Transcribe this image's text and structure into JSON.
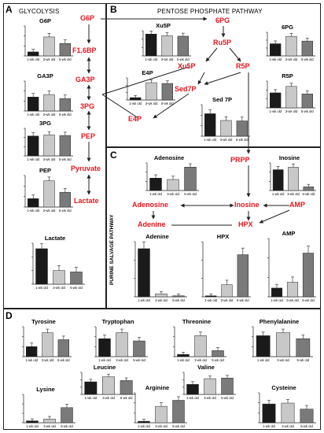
{
  "panels": {
    "a": {
      "label": "A",
      "title": "GLYCOLYSIS"
    },
    "b": {
      "label": "B",
      "title": "PENTOSE PHOSPHATE PATHWAY"
    },
    "c": {
      "label": "C",
      "title": "PURINE SALVAGE PATHWAY"
    },
    "d": {
      "label": "D",
      "title": ""
    }
  },
  "metabolites": {
    "g6p": "G6P",
    "f16bp": "F1,6BP",
    "ga3p": "GA3P",
    "3pg": "3PG",
    "pep": "PEP",
    "pyruvate": "Pyruvate",
    "lactate": "Lactate",
    "6pg": "6PG",
    "ru5p": "Ru5P",
    "xu5p": "Xu5P",
    "r5p": "R5P",
    "sed7p": "Sed7P",
    "e4p": "E4P",
    "prpp": "PRPP",
    "adenosine": "Adenosine",
    "inosine": "Inosine",
    "adenine": "Adenine",
    "hpx": "HPX",
    "amp": "AMP"
  },
  "colors": {
    "metabolite": "#e5161d",
    "bar_1wk": "#1a1a1a",
    "bar_3wk": "#c8c8c8",
    "bar_5wk": "#7a7a7a"
  },
  "chart_data": [
    {
      "id": "g6p",
      "type": "bar",
      "title": "G6P",
      "categories": [
        "1-wk old",
        "3-wk old",
        "5-wk old"
      ],
      "values": [
        8,
        38,
        25
      ],
      "ylim": [
        0,
        60
      ]
    },
    {
      "id": "ga3p",
      "type": "bar",
      "title": "GA3P",
      "categories": [
        "1-wk old",
        "3-wk old",
        "5-wk old"
      ],
      "values": [
        28,
        33,
        25
      ],
      "ylim": [
        0,
        60
      ]
    },
    {
      "id": "pg3",
      "type": "bar",
      "title": "3PG",
      "categories": [
        "1-wk old",
        "3-wk old",
        "5-wk old"
      ],
      "values": [
        3600,
        3800,
        3700
      ],
      "ylim": [
        0,
        5000
      ]
    },
    {
      "id": "pep",
      "type": "bar",
      "title": "PEP",
      "categories": [
        "1-wk old",
        "3-wk old",
        "5-wk old"
      ],
      "values": [
        80,
        250,
        140
      ],
      "ylim": [
        0,
        300
      ]
    },
    {
      "id": "lactate",
      "type": "bar",
      "title": "Lactate",
      "categories": [
        "1-wk old",
        "3-wk old",
        "5-wk old"
      ],
      "values": [
        52,
        20,
        18
      ],
      "ylim": [
        0,
        60
      ]
    },
    {
      "id": "xu5p",
      "type": "bar",
      "title": "Xu5P",
      "categories": [
        "1-wk old",
        "3-wk old",
        "5-wk old"
      ],
      "values": [
        52,
        48,
        47
      ],
      "ylim": [
        0,
        60
      ]
    },
    {
      "id": "pg6",
      "type": "bar",
      "title": "6PG",
      "categories": [
        "1-wk old",
        "3-wk old",
        "5-wk old"
      ],
      "values": [
        36,
        58,
        44
      ],
      "ylim": [
        0,
        70
      ]
    },
    {
      "id": "e4p",
      "type": "bar",
      "title": "E4P",
      "categories": [
        "1-wk old",
        "3-wk old",
        "5-wk old"
      ],
      "values": [
        3,
        22,
        21
      ],
      "ylim": [
        0,
        28
      ]
    },
    {
      "id": "r5p",
      "type": "bar",
      "title": "R5P",
      "categories": [
        "1-wk old",
        "3-wk old",
        "5-wk old"
      ],
      "values": [
        28,
        40,
        26
      ],
      "ylim": [
        0,
        50
      ]
    },
    {
      "id": "sed7p",
      "type": "bar",
      "title": "Sed 7P",
      "categories": [
        "1-wk old",
        "3-wk old",
        "5-wk old"
      ],
      "values": [
        10,
        7,
        6.8
      ],
      "ylim": [
        0,
        14
      ]
    },
    {
      "id": "adenosine",
      "type": "bar",
      "title": "Adenosine",
      "categories": [
        "1-wk old",
        "3-wk old",
        "5-wk old"
      ],
      "values": [
        18,
        16,
        34
      ],
      "ylim": [
        0,
        40
      ]
    },
    {
      "id": "inosine",
      "type": "bar",
      "title": "Inosine",
      "categories": [
        "1-wk old",
        "3-wk old",
        "5-wk old"
      ],
      "values": [
        34,
        38,
        6
      ],
      "ylim": [
        0,
        45
      ]
    },
    {
      "id": "adenine",
      "type": "bar",
      "title": "Adenine",
      "categories": [
        "1-wk old",
        "3-wk old",
        "5-wk old"
      ],
      "values": [
        48,
        3,
        1
      ],
      "ylim": [
        0,
        55
      ]
    },
    {
      "id": "hpx",
      "type": "bar",
      "title": "HPX",
      "categories": [
        "1-wk old",
        "3-wk old",
        "5-wk old"
      ],
      "values": [
        1,
        12,
        42
      ],
      "ylim": [
        0,
        55
      ]
    },
    {
      "id": "amp",
      "type": "bar",
      "title": "AMP",
      "categories": [
        "1-wk old",
        "3-wk old",
        "5-wk old"
      ],
      "values": [
        6,
        10,
        30
      ],
      "ylim": [
        0,
        40
      ]
    },
    {
      "id": "tyrosine",
      "type": "bar",
      "title": "Tyrosine",
      "categories": [
        "1-wk old",
        "3-wk old",
        "5-wk old"
      ],
      "values": [
        10,
        24,
        17
      ],
      "ylim": [
        0,
        30
      ]
    },
    {
      "id": "tryptophan",
      "type": "bar",
      "title": "Tryptophan",
      "categories": [
        "1-wk old",
        "3-wk old",
        "5-wk old"
      ],
      "values": [
        24,
        32,
        21
      ],
      "ylim": [
        0,
        40
      ]
    },
    {
      "id": "threonine",
      "type": "bar",
      "title": "Threonine",
      "categories": [
        "1-wk old",
        "3-wk old",
        "5-wk old"
      ],
      "values": [
        3,
        28,
        8
      ],
      "ylim": [
        0,
        40
      ]
    },
    {
      "id": "phenylalanine",
      "type": "bar",
      "title": "Phenylalanine",
      "categories": [
        "1-wk old",
        "3-wk old",
        "5-wk old"
      ],
      "values": [
        14,
        16,
        12
      ],
      "ylim": [
        0,
        20
      ]
    },
    {
      "id": "leucine",
      "type": "bar",
      "title": "Leucine",
      "categories": [
        "1-wk old",
        "3-wk old",
        "5-wk old"
      ],
      "values": [
        20,
        28,
        22
      ],
      "ylim": [
        0,
        35
      ]
    },
    {
      "id": "valine",
      "type": "bar",
      "title": "Valine",
      "categories": [
        "1-wk old",
        "3-wk old",
        "5-wk old"
      ],
      "values": [
        16,
        25,
        26
      ],
      "ylim": [
        0,
        35
      ]
    },
    {
      "id": "lysine",
      "type": "bar",
      "title": "Lysine",
      "categories": [
        "1-wk old",
        "3-wk old",
        "5-wk old"
      ],
      "values": [
        2,
        4,
        16
      ],
      "ylim": [
        0,
        30
      ]
    },
    {
      "id": "arginine",
      "type": "bar",
      "title": "Arginine",
      "categories": [
        "1-wk old",
        "3-wk old",
        "5-wk old"
      ],
      "values": [
        2,
        22,
        30
      ],
      "ylim": [
        0,
        40
      ]
    },
    {
      "id": "cysteine",
      "type": "bar",
      "title": "Cysteine",
      "categories": [
        "1-wk old",
        "3-wk old",
        "5-wk old"
      ],
      "values": [
        22,
        23,
        16
      ],
      "ylim": [
        0,
        35
      ]
    }
  ]
}
